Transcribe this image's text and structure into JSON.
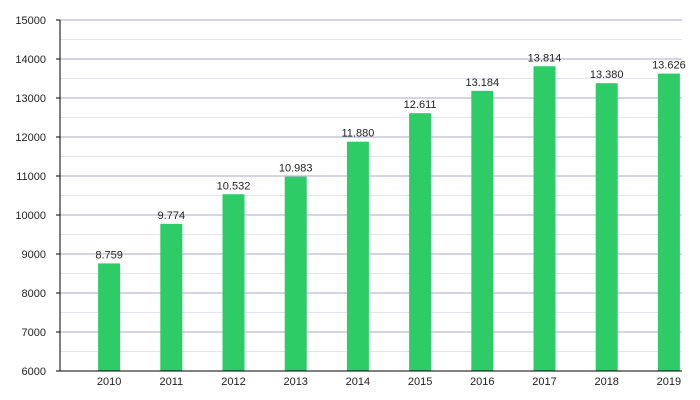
{
  "chart_data": {
    "type": "bar",
    "title": "",
    "xlabel": "",
    "ylabel": "",
    "categories": [
      "2010",
      "2011",
      "2012",
      "2013",
      "2014",
      "2015",
      "2016",
      "2017",
      "2018",
      "2019"
    ],
    "values": [
      8759,
      9774,
      10532,
      10983,
      11880,
      12611,
      13184,
      13814,
      13380,
      13626
    ],
    "value_labels": [
      "8.759",
      "9.774",
      "10.532",
      "10.983",
      "11.880",
      "12.611",
      "13.184",
      "13.814",
      "13.380",
      "13.626"
    ],
    "ylim": [
      6000,
      15000
    ],
    "yticks": [
      6000,
      7000,
      8000,
      9000,
      10000,
      11000,
      12000,
      13000,
      14000,
      15000
    ],
    "ytick_labels": [
      "6000",
      "7000",
      "8000",
      "9000",
      "10000",
      "11000",
      "12000",
      "13000",
      "14000",
      "15000"
    ],
    "grid": true,
    "colors": {
      "bar": "#2ecc67",
      "grid_major": "#a9a9cf",
      "grid_minor": "#e3e3ee",
      "axis": "#000000"
    }
  }
}
